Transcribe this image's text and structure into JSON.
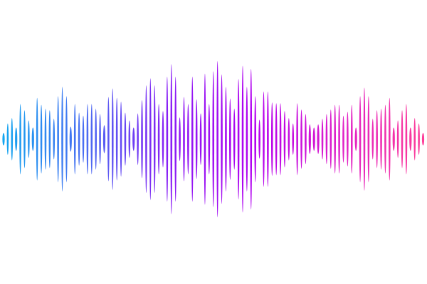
{
  "waveform": {
    "gradient_colors": [
      "#12a8f0",
      "#4a6cf2",
      "#8a1cf5",
      "#b400f0",
      "#e020c8",
      "#ff3d96"
    ],
    "background": "#ffffff",
    "amplitudes_percent": [
      8,
      20,
      27,
      15,
      45,
      37,
      24,
      15,
      53,
      44,
      39,
      37,
      26,
      55,
      67,
      55,
      16,
      45,
      34,
      30,
      45,
      45,
      39,
      32,
      18,
      54,
      65,
      53,
      48,
      34,
      24,
      15,
      33,
      50,
      69,
      78,
      69,
      45,
      36,
      80,
      96,
      80,
      28,
      54,
      45,
      80,
      51,
      33,
      84,
      45,
      87,
      100,
      83,
      67,
      52,
      39,
      77,
      94,
      67,
      90,
      55,
      25,
      61,
      61,
      47,
      46,
      46,
      36,
      27,
      20,
      46,
      38,
      32,
      19,
      15,
      19,
      26,
      32,
      38,
      44,
      44,
      30,
      35,
      44,
      15,
      55,
      66,
      55,
      26,
      37,
      39,
      44,
      53,
      15,
      24,
      37,
      45,
      15,
      27,
      20,
      8
    ]
  }
}
